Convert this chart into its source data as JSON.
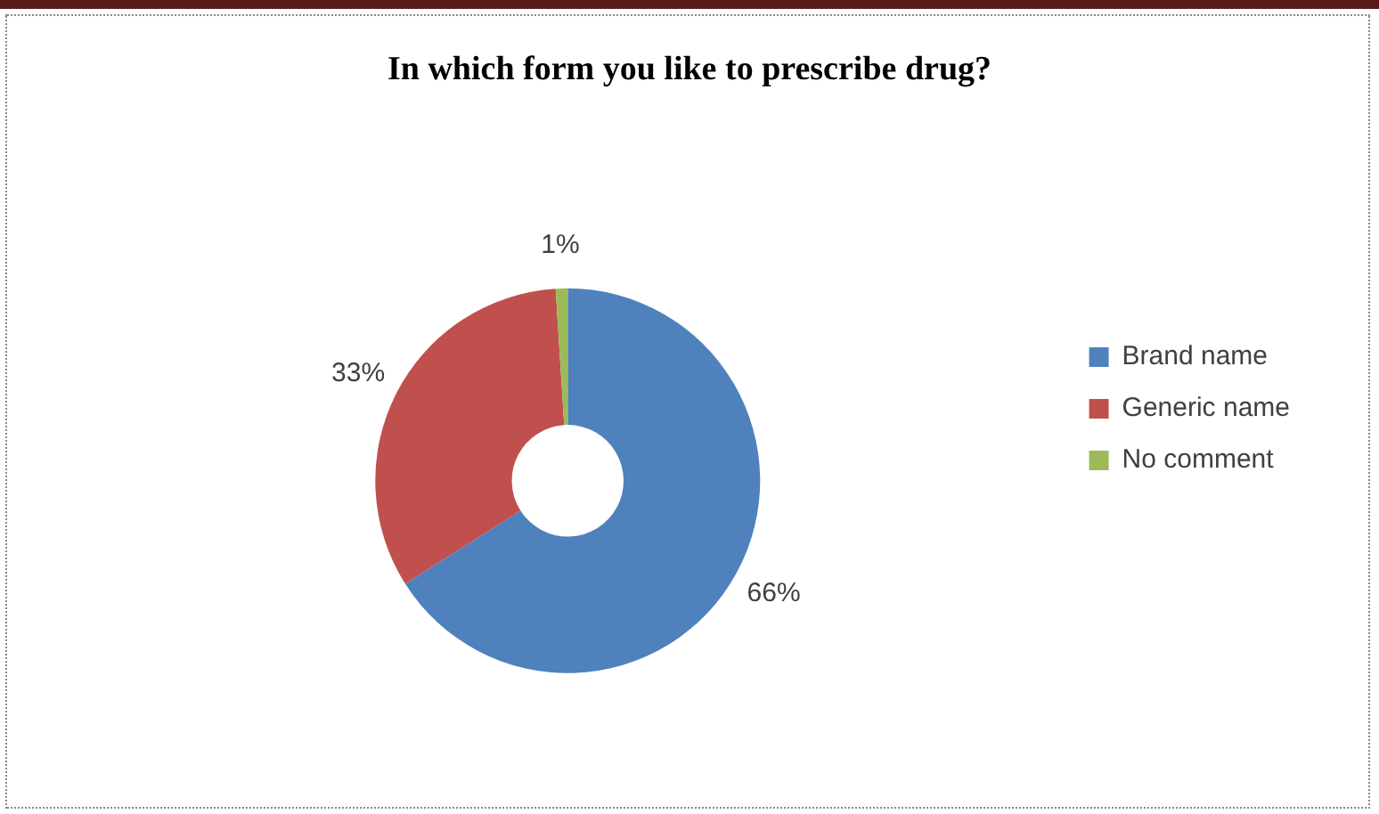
{
  "chart_data": {
    "type": "donut",
    "title": "In which form you like to prescribe drug?",
    "categories": [
      "Brand name",
      "Generic name",
      "No comment"
    ],
    "values": [
      66,
      33,
      1
    ],
    "colors": [
      "#4f81bd",
      "#c0504d",
      "#9bbb59"
    ],
    "value_labels": [
      "66%",
      "33%",
      "1%"
    ],
    "legend": "right"
  }
}
